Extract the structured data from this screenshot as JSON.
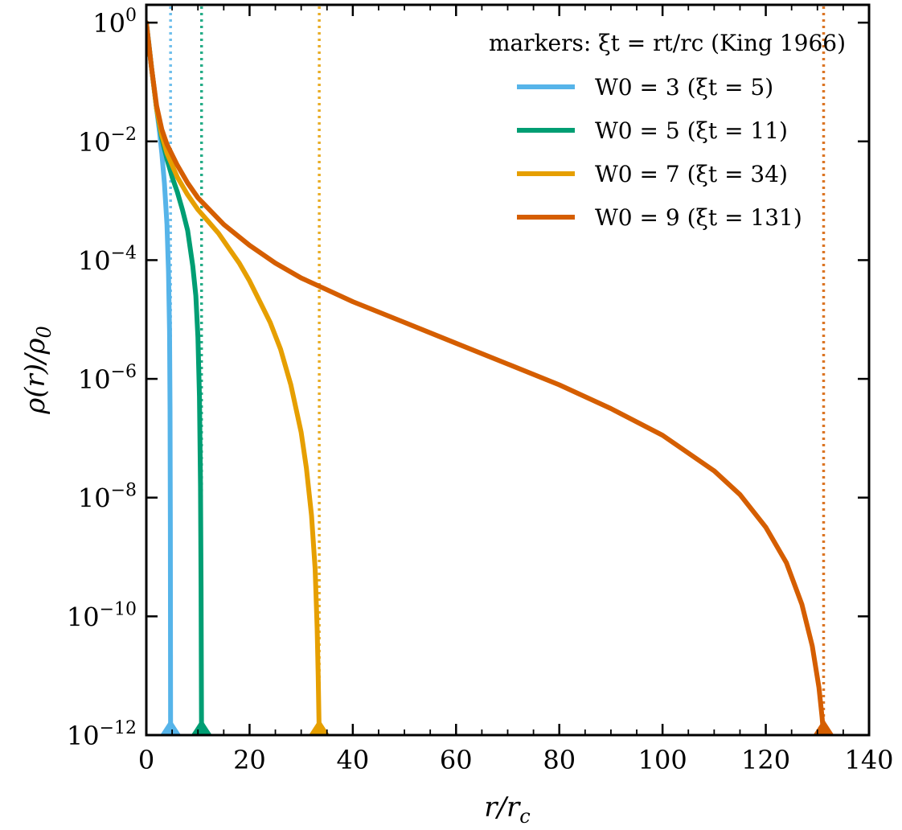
{
  "chart_data": {
    "type": "line",
    "title": "",
    "xlabel": "r/r",
    "xlabel_sub": "c",
    "ylabel": "ρ(r)/ρ",
    "ylabel_sub": "0",
    "xlim": [
      0,
      140
    ],
    "ylim_log10": [
      -12,
      0.3
    ],
    "y_scale": "log",
    "grid": false,
    "legend_placement": "top-right",
    "legend_title": "markers: ξt = rt/rc (King 1966)",
    "x_ticks": [
      {
        "value": 0,
        "label": "0"
      },
      {
        "value": 20,
        "label": "20"
      },
      {
        "value": 40,
        "label": "40"
      },
      {
        "value": 60,
        "label": "60"
      },
      {
        "value": 80,
        "label": "80"
      },
      {
        "value": 100,
        "label": "100"
      },
      {
        "value": 120,
        "label": "120"
      },
      {
        "value": 140,
        "label": "140"
      }
    ],
    "y_ticks": [
      {
        "exp": 0,
        "base": "10",
        "sup": "0"
      },
      {
        "exp": -2,
        "base": "10",
        "sup": "−2"
      },
      {
        "exp": -4,
        "base": "10",
        "sup": "−4"
      },
      {
        "exp": -6,
        "base": "10",
        "sup": "−6"
      },
      {
        "exp": -8,
        "base": "10",
        "sup": "−8"
      },
      {
        "exp": -10,
        "base": "10",
        "sup": "−10"
      },
      {
        "exp": -12,
        "base": "10",
        "sup": "−12"
      }
    ],
    "series": [
      {
        "name": "W0 = 3 (ξt = 5)",
        "color": "#56B4E9",
        "tidal_radius": 4.7,
        "x": [
          0,
          0.5,
          1,
          1.5,
          2,
          2.5,
          3,
          3.5,
          4,
          4.3,
          4.5,
          4.6,
          4.65,
          4.7
        ],
        "log10_y": [
          0,
          -0.35,
          -0.75,
          -1.1,
          -1.45,
          -1.8,
          -2.2,
          -2.7,
          -3.4,
          -4.2,
          -5.2,
          -6.5,
          -8.5,
          -12
        ]
      },
      {
        "name": "W0 = 5 (ξt = 11)",
        "color": "#009E73",
        "tidal_radius": 10.7,
        "x": [
          0,
          1,
          2,
          3,
          4,
          5,
          6,
          7,
          8,
          9,
          9.6,
          10,
          10.3,
          10.5,
          10.6,
          10.7
        ],
        "log10_y": [
          0,
          -0.75,
          -1.45,
          -1.95,
          -2.3,
          -2.6,
          -2.85,
          -3.15,
          -3.5,
          -4.1,
          -4.6,
          -5.3,
          -6.3,
          -7.8,
          -9.5,
          -12
        ]
      },
      {
        "name": "W0 = 7 (ξt = 34)",
        "color": "#E69F00",
        "tidal_radius": 33.5,
        "x": [
          0,
          1,
          2,
          3,
          4,
          6,
          8,
          10,
          12,
          14,
          16,
          18,
          20,
          22,
          24,
          26,
          28,
          30,
          31,
          32,
          32.7,
          33.1,
          33.3,
          33.5
        ],
        "log10_y": [
          0,
          -0.75,
          -1.45,
          -1.9,
          -2.2,
          -2.6,
          -2.9,
          -3.15,
          -3.35,
          -3.55,
          -3.8,
          -4.05,
          -4.35,
          -4.7,
          -5.05,
          -5.5,
          -6.1,
          -6.9,
          -7.5,
          -8.3,
          -9.2,
          -10.2,
          -11,
          -12
        ]
      },
      {
        "name": "W0 = 9 (ξt = 131)",
        "color": "#D55E00",
        "tidal_radius": 131.2,
        "x": [
          0,
          1,
          2,
          3,
          4,
          6,
          8,
          10,
          15,
          20,
          25,
          30,
          35,
          40,
          50,
          60,
          70,
          80,
          90,
          100,
          110,
          115,
          120,
          124,
          127,
          129,
          130.3,
          130.9,
          131.2
        ],
        "log10_y": [
          0,
          -0.75,
          -1.4,
          -1.8,
          -2.05,
          -2.4,
          -2.7,
          -2.95,
          -3.4,
          -3.75,
          -4.05,
          -4.3,
          -4.5,
          -4.7,
          -5.05,
          -5.4,
          -5.75,
          -6.1,
          -6.5,
          -6.95,
          -7.55,
          -7.95,
          -8.5,
          -9.1,
          -9.8,
          -10.5,
          -11.2,
          -11.7,
          -12
        ]
      }
    ]
  }
}
